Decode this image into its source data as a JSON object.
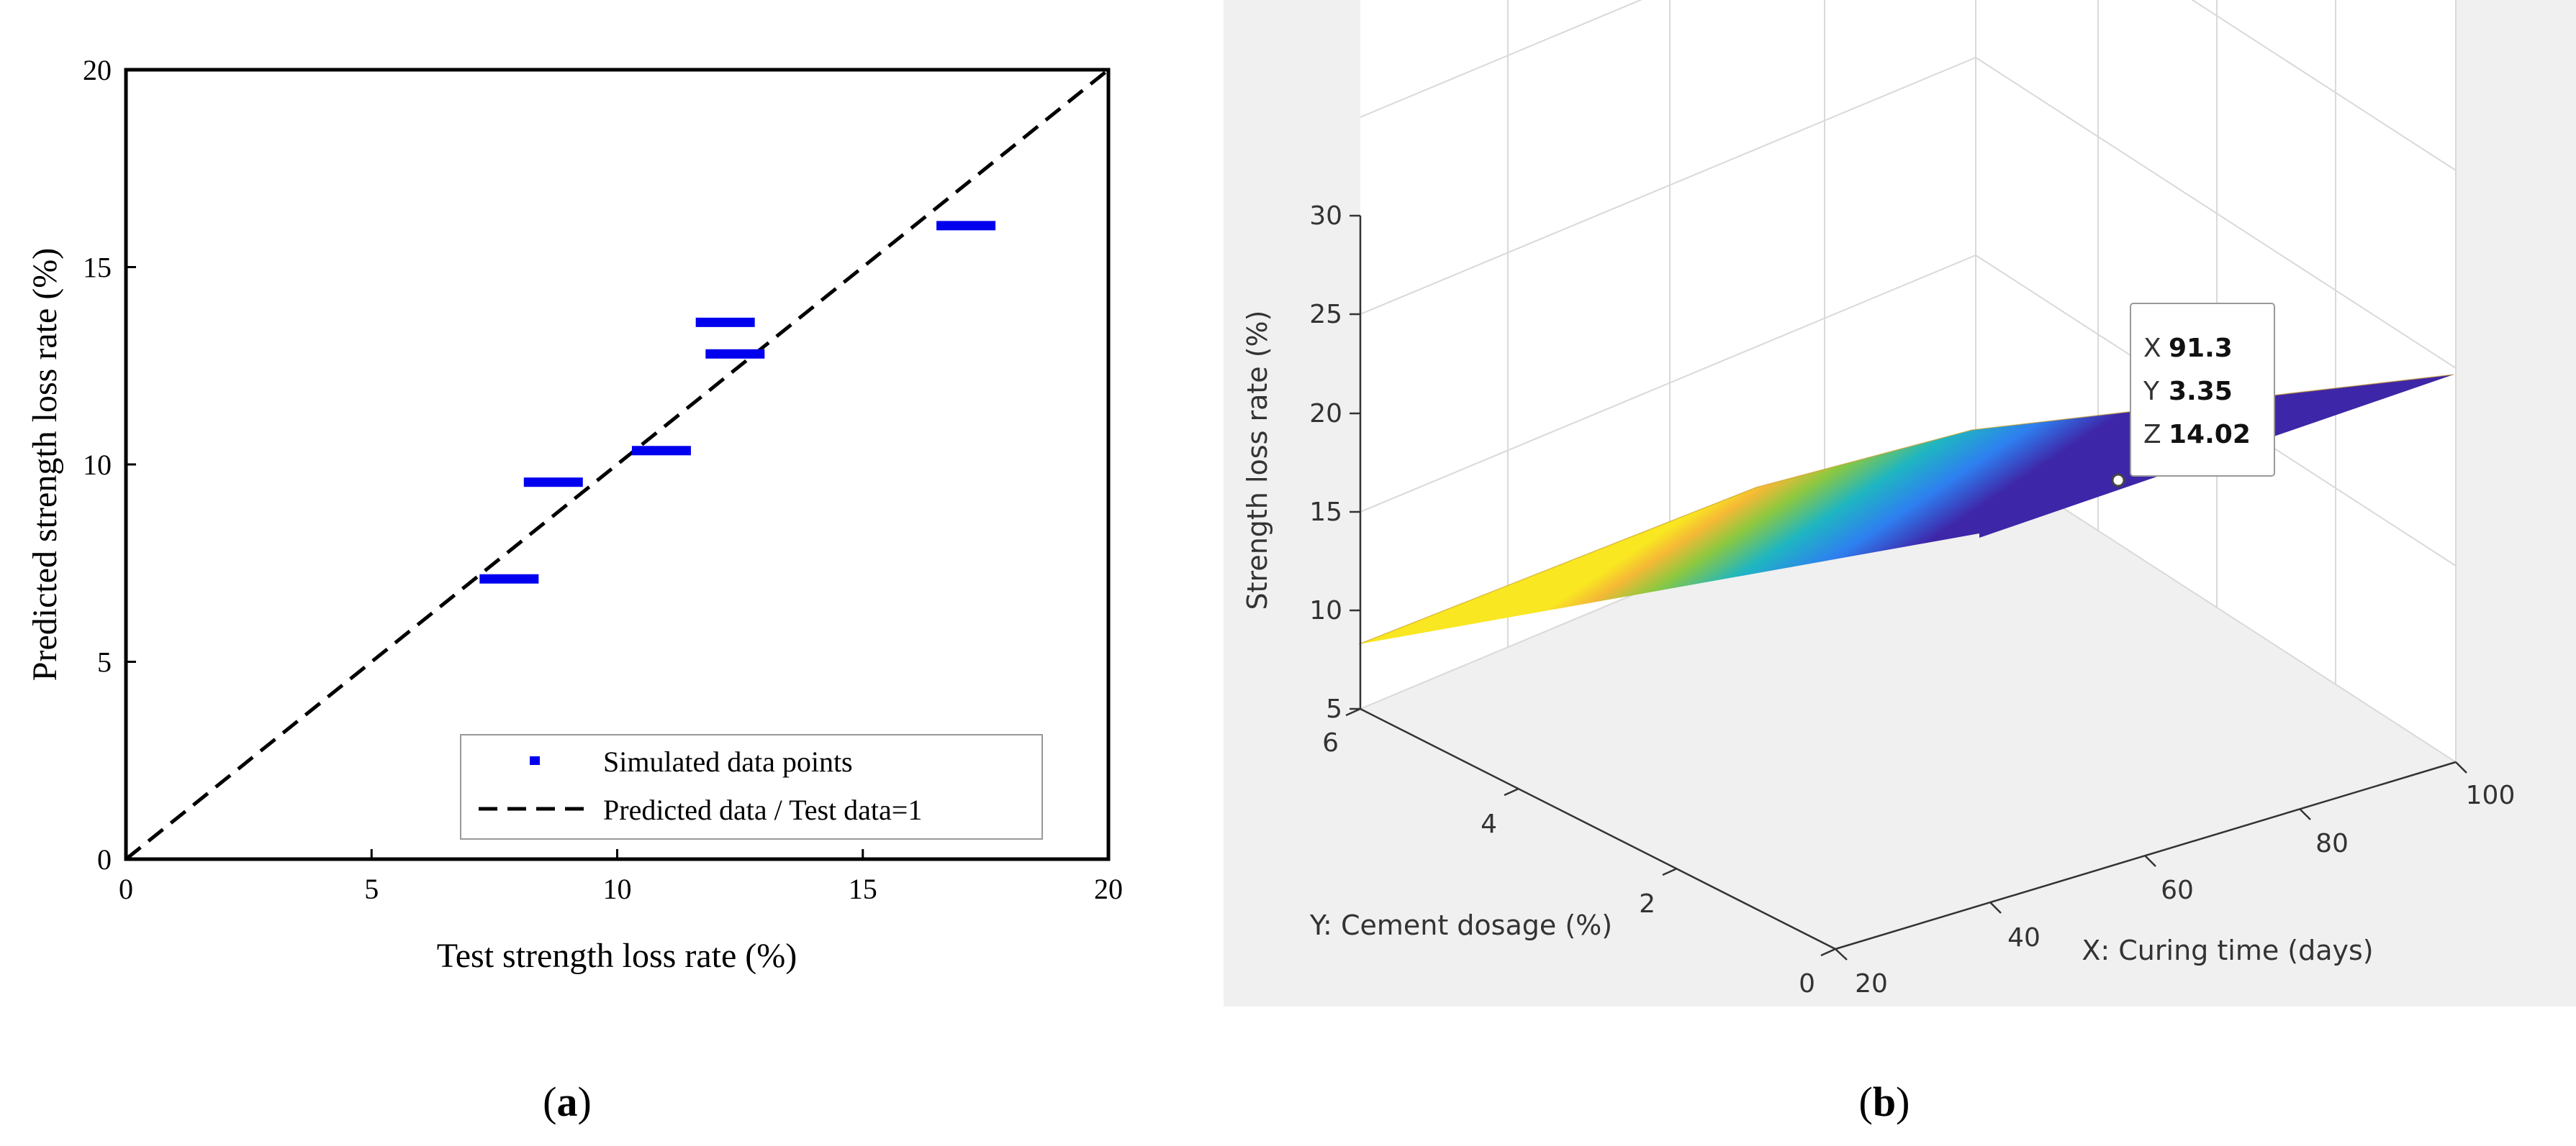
{
  "chart_data": [
    {
      "panel_label": "(a)",
      "type": "scatter",
      "title": "",
      "xlabel": "Test strength loss rate (%)",
      "ylabel": "Predicted strength loss rate (%)",
      "xlim": [
        0,
        20
      ],
      "ylim": [
        0,
        20
      ],
      "xticks": [
        0,
        5,
        10,
        15,
        20
      ],
      "yticks": [
        0,
        5,
        10,
        15,
        20
      ],
      "grid": false,
      "legend_position": "lower-right",
      "series": [
        {
          "name": "Simulated data points",
          "marker": "dash",
          "color": "#0000ee",
          "x": [
            7.8,
            8.7,
            10.9,
            12.2,
            12.4,
            17.1
          ],
          "y": [
            7.1,
            9.55,
            10.35,
            13.6,
            12.8,
            16.05
          ]
        },
        {
          "name": "Predicted data / Test data=1",
          "style": "dashed-line",
          "color": "#000000",
          "x": [
            0,
            20
          ],
          "y": [
            0,
            20
          ]
        }
      ]
    },
    {
      "panel_label": "(b)",
      "type": "surface",
      "title": "",
      "xlabel": "X: Curing time (days)",
      "ylabel": "Y: Cement dosage (%)",
      "zlabel": "Strength loss rate (%)",
      "xlim": [
        20,
        100
      ],
      "ylim": [
        0,
        6
      ],
      "zlim": [
        5,
        30
      ],
      "xticks": [
        20,
        40,
        60,
        80,
        100
      ],
      "yticks": [
        0,
        2,
        4,
        6
      ],
      "zticks": [
        5,
        10,
        15,
        20,
        25,
        30
      ],
      "grid": true,
      "colormap": "parula",
      "datatip": {
        "x_label": "X",
        "x_value": "91.3",
        "y_label": "Y",
        "y_value": "3.35",
        "z_label": "Z",
        "z_value": "14.02"
      }
    }
  ]
}
